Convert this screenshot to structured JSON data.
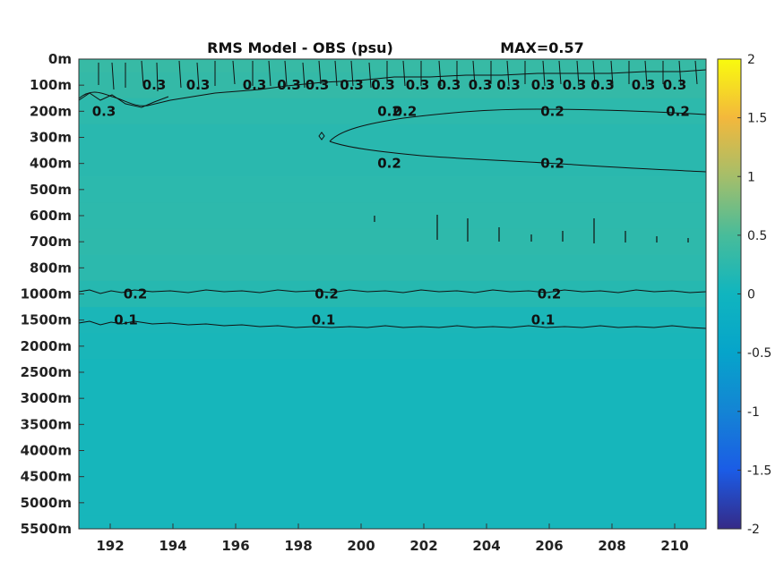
{
  "chart_data": {
    "type": "heatmap",
    "title": "RMS Model - OBS (psu)",
    "max_label": "MAX=0.57",
    "x_ticks": [
      "192",
      "194",
      "196",
      "198",
      "200",
      "202",
      "204",
      "206",
      "208",
      "210"
    ],
    "x_tick_values": [
      192,
      194,
      196,
      198,
      200,
      202,
      204,
      206,
      208,
      210
    ],
    "xlim": [
      191,
      211
    ],
    "y_ticks": [
      "0m",
      "100m",
      "200m",
      "300m",
      "400m",
      "500m",
      "600m",
      "700m",
      "800m",
      "1000m",
      "1500m",
      "2000m",
      "2500m",
      "3000m",
      "3500m",
      "4000m",
      "4500m",
      "5000m",
      "5500m"
    ],
    "colorbar": {
      "ticks": [
        "2",
        "1.5",
        "1",
        "0.5",
        "0",
        "-0.5",
        "-1",
        "-1.5",
        "-2"
      ],
      "tick_values": [
        2,
        1.5,
        1,
        0.5,
        0,
        -0.5,
        -1,
        -1.5,
        -2
      ],
      "range": [
        -2,
        2
      ],
      "colormap": "parula"
    },
    "depth_profile": [
      {
        "depth": "0m",
        "value": 0.35
      },
      {
        "depth": "100m",
        "value": 0.32
      },
      {
        "depth": "200m",
        "value": 0.26
      },
      {
        "depth": "300m",
        "value": 0.22
      },
      {
        "depth": "400m",
        "value": 0.23
      },
      {
        "depth": "500m",
        "value": 0.25
      },
      {
        "depth": "600m",
        "value": 0.26
      },
      {
        "depth": "700m",
        "value": 0.27
      },
      {
        "depth": "800m",
        "value": 0.25
      },
      {
        "depth": "1000m",
        "value": 0.2
      },
      {
        "depth": "1500m",
        "value": 0.1
      },
      {
        "depth": "2000m",
        "value": 0.08
      },
      {
        "depth": "2500m",
        "value": 0.05
      },
      {
        "depth": "3000m",
        "value": 0.05
      },
      {
        "depth": "3500m",
        "value": 0.05
      },
      {
        "depth": "4000m",
        "value": 0.05
      },
      {
        "depth": "4500m",
        "value": 0.05
      },
      {
        "depth": "5000m",
        "value": 0.06
      },
      {
        "depth": "5500m",
        "value": 0.06
      }
    ],
    "contour_labels": [
      {
        "text": "0.3",
        "x": 191.8,
        "depth": "200m"
      },
      {
        "text": "0.3",
        "x": 193.4,
        "depth": "100m"
      },
      {
        "text": "0.3",
        "x": 194.8,
        "depth": "100m"
      },
      {
        "text": "0.3",
        "x": 196.6,
        "depth": "100m"
      },
      {
        "text": "0.3",
        "x": 197.7,
        "depth": "100m"
      },
      {
        "text": "0.3",
        "x": 198.6,
        "depth": "100m"
      },
      {
        "text": "0.3",
        "x": 199.7,
        "depth": "100m"
      },
      {
        "text": "0.3",
        "x": 200.7,
        "depth": "100m"
      },
      {
        "text": "0.3",
        "x": 201.8,
        "depth": "100m"
      },
      {
        "text": "0.3",
        "x": 202.8,
        "depth": "100m"
      },
      {
        "text": "0.3",
        "x": 203.8,
        "depth": "100m"
      },
      {
        "text": "0.3",
        "x": 204.7,
        "depth": "100m"
      },
      {
        "text": "0.3",
        "x": 205.8,
        "depth": "100m"
      },
      {
        "text": "0.3",
        "x": 206.8,
        "depth": "100m"
      },
      {
        "text": "0.3",
        "x": 207.7,
        "depth": "100m"
      },
      {
        "text": "0.3",
        "x": 209.0,
        "depth": "100m"
      },
      {
        "text": "0.3",
        "x": 210.0,
        "depth": "100m"
      },
      {
        "text": "0.2",
        "x": 200.9,
        "depth": "200m"
      },
      {
        "text": "0.2",
        "x": 201.4,
        "depth": "200m"
      },
      {
        "text": "0.2",
        "x": 206.1,
        "depth": "200m"
      },
      {
        "text": "0.2",
        "x": 210.1,
        "depth": "200m"
      },
      {
        "text": "0.2",
        "x": 200.9,
        "depth": "400m"
      },
      {
        "text": "0.2",
        "x": 206.1,
        "depth": "400m"
      },
      {
        "text": "0.2",
        "x": 192.8,
        "depth": "1000m"
      },
      {
        "text": "0.2",
        "x": 198.9,
        "depth": "1000m"
      },
      {
        "text": "0.2",
        "x": 206.0,
        "depth": "1000m"
      },
      {
        "text": "0.1",
        "x": 192.5,
        "depth": "1500m"
      },
      {
        "text": "0.1",
        "x": 198.8,
        "depth": "1500m"
      },
      {
        "text": "0.1",
        "x": 205.8,
        "depth": "1500m"
      }
    ]
  }
}
